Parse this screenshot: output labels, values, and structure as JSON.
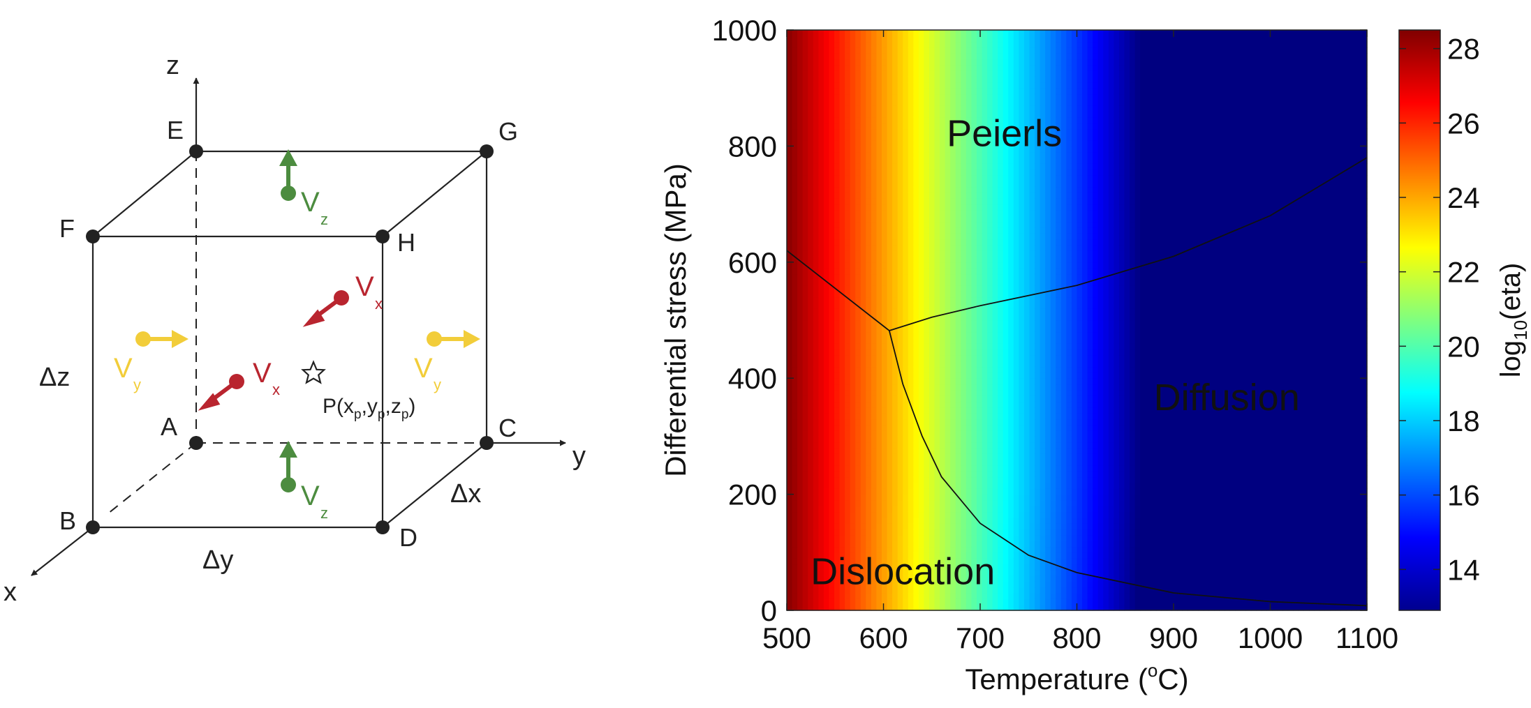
{
  "cube_diagram": {
    "corners": {
      "E": "E",
      "G": "G",
      "F": "F",
      "H": "H",
      "A": "A",
      "C": "C",
      "B": "B",
      "D": "D"
    },
    "axes": {
      "x": "x",
      "y": "y",
      "z": "z"
    },
    "dimensions": {
      "dx": "Δx",
      "dy": "Δy",
      "dz": "Δz"
    },
    "velocities": {
      "v": "V",
      "x": "x",
      "y": "y",
      "z": "z"
    },
    "point": {
      "p": "P(x",
      "p_sub": "p",
      "y": "y",
      "z": "z",
      "close": ")",
      "sep": ","
    },
    "colors": {
      "vz": "#4c8c3f",
      "vx": "#b9252f",
      "vy": "#f2cd3a"
    }
  },
  "chart_data": {
    "type": "heatmap",
    "x_ticks": [
      500,
      600,
      700,
      800,
      900,
      1000,
      1100
    ],
    "y_ticks": [
      0,
      200,
      400,
      600,
      800,
      1000
    ],
    "xlim": [
      500,
      1100
    ],
    "ylim": [
      0,
      1000
    ],
    "xlabel_main": "Temperature (",
    "xlabel_sup": "o",
    "xlabel_unit": "C)",
    "ylabel": "Differential stress (MPa)",
    "colorbar": {
      "label_prefix": "log",
      "label_sub": "10",
      "label_suffix": "(eta)",
      "range": [
        12.9,
        28.5
      ],
      "ticks": [
        14,
        16,
        18,
        20,
        22,
        24,
        26,
        28
      ],
      "colormap": "jet"
    },
    "regions": [
      {
        "label": "Peierls",
        "x": 725,
        "y": 800
      },
      {
        "label": "Diffusion",
        "x": 955,
        "y": 345
      },
      {
        "label": "Dislocation",
        "x": 620,
        "y": 45
      }
    ],
    "boundaries": [
      {
        "name": "dislocation-peierls",
        "points": [
          [
            500,
            620
          ],
          [
            606,
            482
          ]
        ]
      },
      {
        "name": "peierls-diffusion",
        "points": [
          [
            606,
            482
          ],
          [
            650,
            505
          ],
          [
            700,
            525
          ],
          [
            800,
            560
          ],
          [
            900,
            610
          ],
          [
            1000,
            680
          ],
          [
            1100,
            780
          ]
        ]
      },
      {
        "name": "dislocation-diffusion",
        "points": [
          [
            606,
            482
          ],
          [
            620,
            390
          ],
          [
            640,
            300
          ],
          [
            660,
            230
          ],
          [
            700,
            150
          ],
          [
            750,
            95
          ],
          [
            800,
            65
          ],
          [
            900,
            30
          ],
          [
            1000,
            15
          ],
          [
            1100,
            8
          ]
        ]
      }
    ]
  }
}
